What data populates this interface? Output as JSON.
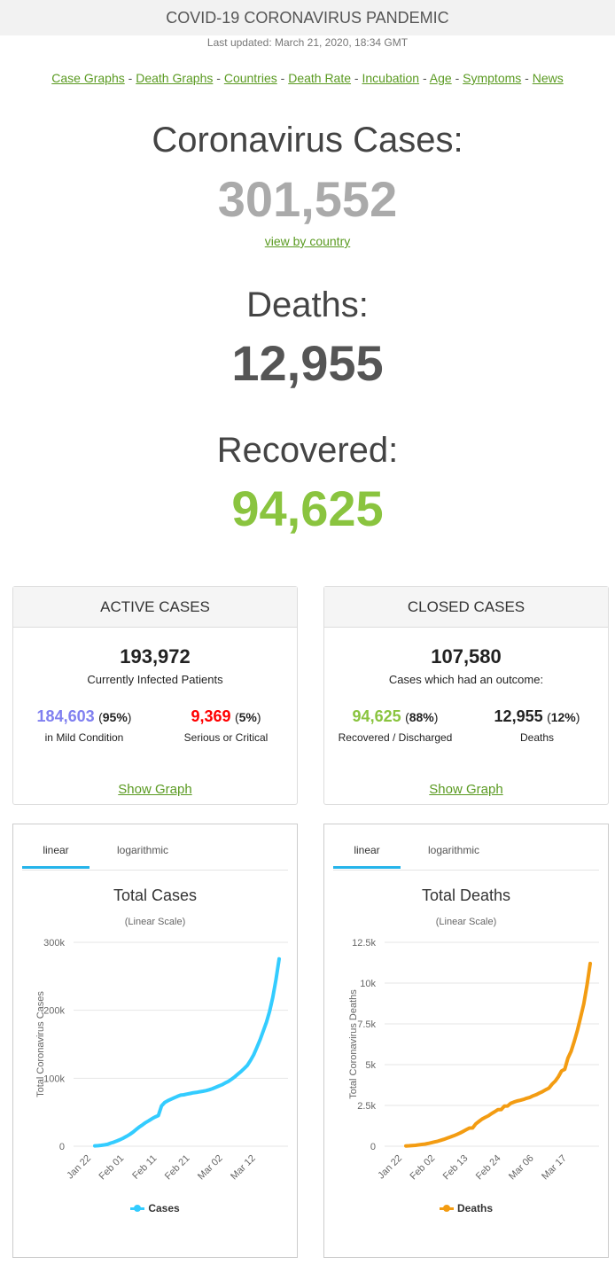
{
  "header": {
    "title": "COVID-19 CORONAVIRUS PANDEMIC",
    "updated": "Last updated: March 21, 2020, 18:34 GMT",
    "nav": [
      "Case Graphs",
      "Death Graphs",
      "Countries",
      "Death Rate",
      "Incubation",
      "Age",
      "Symptoms",
      "News"
    ]
  },
  "cases": {
    "label": "Coronavirus Cases:",
    "value": "301,552",
    "link": "view by country"
  },
  "deaths": {
    "label": "Deaths:",
    "value": "12,955"
  },
  "recovered": {
    "label": "Recovered:",
    "value": "94,625"
  },
  "active": {
    "title": "ACTIVE CASES",
    "total": "193,972",
    "total_label": "Currently Infected Patients",
    "mild_value": "184,603",
    "mild_pct": "95%",
    "mild_label": "in Mild Condition",
    "serious_value": "9,369",
    "serious_pct": "5%",
    "serious_label": "Serious or Critical",
    "show_graph": "Show Graph"
  },
  "closed": {
    "title": "CLOSED CASES",
    "total": "107,580",
    "total_label": "Cases which had an outcome:",
    "recovered_value": "94,625",
    "recovered_pct": "88%",
    "recovered_label": "Recovered / Discharged",
    "deaths_value": "12,955",
    "deaths_pct": "12%",
    "deaths_label": "Deaths",
    "show_graph": "Show Graph"
  },
  "colors": {
    "green": "#8ac43f",
    "blue": "#8080f0",
    "red": "#ff0000",
    "cases_line": "#33ccff",
    "deaths_line": "#f39c12"
  },
  "open_paren": "(",
  "close_paren": ")",
  "chart_data": [
    {
      "type": "line",
      "title": "Total Cases",
      "subtitle": "(Linear Scale)",
      "ylabel": "Total Coronavirus Cases",
      "ylim": [
        0,
        300000
      ],
      "yticks": [
        "0",
        "100k",
        "200k",
        "300k"
      ],
      "ytick_values": [
        0,
        100000,
        200000,
        300000
      ],
      "xticks": [
        "Jan 22",
        "Feb 01",
        "Feb 11",
        "Feb 21",
        "Mar 02",
        "Mar 12"
      ],
      "tabs": [
        "linear",
        "logarithmic"
      ],
      "series": [
        {
          "name": "Cases",
          "values": [
            580,
            845,
            1317,
            2015,
            2800,
            4581,
            6058,
            7813,
            9823,
            11950,
            14553,
            17391,
            20630,
            24545,
            28276,
            31439,
            34876,
            37552,
            40553,
            43099,
            45134,
            59287,
            64438,
            67100,
            69197,
            71329,
            73332,
            75184,
            75700,
            76677,
            77673,
            78651,
            79205,
            80087,
            80828,
            81820,
            83112,
            84615,
            86604,
            88585,
            90443,
            93016,
            95314,
            98425,
            102050,
            106099,
            109991,
            114381,
            118948,
            126214,
            134576,
            145483,
            156653,
            169593,
            182490,
            198238,
            218822,
            244933,
            275597
          ]
        }
      ]
    },
    {
      "type": "line",
      "title": "Total Deaths",
      "subtitle": "(Linear Scale)",
      "ylabel": "Total Coronavirus Deaths",
      "ylim": [
        0,
        12500
      ],
      "yticks": [
        "0",
        "2.5k",
        "5k",
        "7.5k",
        "10k",
        "12.5k"
      ],
      "ytick_values": [
        0,
        2500,
        5000,
        7500,
        10000,
        12500
      ],
      "xticks": [
        "Jan 22",
        "Feb 02",
        "Feb 13",
        "Feb 24",
        "Mar 06",
        "Mar 17"
      ],
      "tabs": [
        "linear",
        "logarithmic"
      ],
      "series": [
        {
          "name": "Deaths",
          "values": [
            17,
            25,
            41,
            56,
            80,
            106,
            132,
            170,
            213,
            259,
            304,
            362,
            426,
            492,
            564,
            634,
            719,
            806,
            906,
            1013,
            1113,
            1118,
            1371,
            1523,
            1666,
            1770,
            1868,
            2007,
            2122,
            2247,
            2251,
            2458,
            2469,
            2629,
            2708,
            2770,
            2814,
            2872,
            2941,
            2996,
            3085,
            3160,
            3254,
            3348,
            3460,
            3558,
            3803,
            3996,
            4262,
            4615,
            4720,
            5404,
            5819,
            6440,
            7126,
            7905,
            8733,
            9867,
            11200
          ]
        }
      ]
    }
  ]
}
